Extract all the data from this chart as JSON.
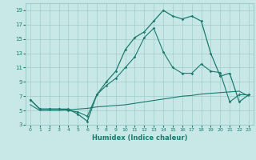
{
  "xlabel": "Humidex (Indice chaleur)",
  "xlim": [
    -0.5,
    23.5
  ],
  "ylim": [
    3,
    20
  ],
  "xticks": [
    0,
    1,
    2,
    3,
    4,
    5,
    6,
    7,
    8,
    9,
    10,
    11,
    12,
    13,
    14,
    15,
    16,
    17,
    18,
    19,
    20,
    21,
    22,
    23
  ],
  "yticks": [
    3,
    5,
    7,
    9,
    11,
    13,
    15,
    17,
    19
  ],
  "bg_color": "#c8e8e8",
  "grid_color": "#a0cccc",
  "line_color": "#1a7a6e",
  "main_x": [
    0,
    1,
    2,
    3,
    4,
    5,
    6,
    7,
    8,
    9,
    10,
    11,
    12,
    13,
    14,
    15,
    16,
    17,
    18,
    19,
    20,
    21,
    22,
    23
  ],
  "main_y": [
    6.5,
    5.2,
    5.2,
    5.2,
    5.2,
    4.5,
    3.5,
    7.2,
    9.0,
    10.5,
    13.5,
    15.2,
    16.0,
    17.5,
    19.0,
    18.2,
    17.8,
    18.2,
    17.5,
    13.0,
    9.8,
    10.2,
    6.2,
    7.2
  ],
  "upper_x": [
    0,
    1,
    2,
    3,
    4,
    5,
    6,
    7,
    8,
    9,
    10,
    11,
    12,
    13,
    14,
    15,
    16,
    17,
    18,
    19,
    20,
    21,
    22,
    23
  ],
  "upper_y": [
    6.5,
    5.2,
    5.2,
    5.2,
    5.0,
    4.8,
    4.2,
    7.2,
    8.5,
    9.5,
    11.0,
    12.5,
    15.2,
    16.5,
    13.2,
    11.0,
    10.2,
    10.2,
    11.5,
    10.5,
    10.3,
    6.2,
    7.2,
    7.2
  ],
  "lower_x": [
    0,
    1,
    2,
    3,
    4,
    5,
    6,
    7,
    8,
    9,
    10,
    11,
    12,
    13,
    14,
    15,
    16,
    17,
    18,
    19,
    20,
    21,
    22,
    23
  ],
  "lower_y": [
    5.8,
    5.0,
    5.0,
    5.0,
    5.1,
    5.2,
    5.3,
    5.5,
    5.6,
    5.7,
    5.8,
    6.0,
    6.2,
    6.4,
    6.6,
    6.8,
    7.0,
    7.1,
    7.3,
    7.4,
    7.5,
    7.6,
    7.7,
    7.0
  ]
}
